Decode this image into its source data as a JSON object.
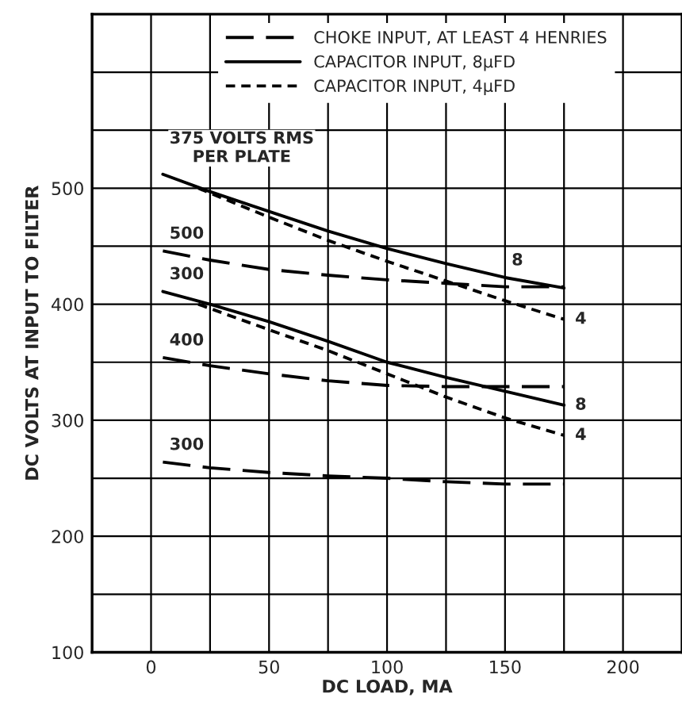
{
  "chart_data": {
    "type": "line",
    "xlabel": "DC LOAD, MA",
    "ylabel": "DC VOLTS AT INPUT TO FILTER",
    "xlim": [
      -25,
      225
    ],
    "ylim": [
      100,
      650
    ],
    "xticks": [
      {
        "value": -25,
        "label": null
      },
      0,
      {
        "value": 25,
        "label": null
      },
      50,
      {
        "value": 75,
        "label": null
      },
      100,
      {
        "value": 125,
        "label": null
      },
      150,
      {
        "value": 175,
        "label": null
      },
      200
    ],
    "yticks": [
      100,
      {
        "value": 150,
        "label": null
      },
      200,
      {
        "value": 250,
        "label": null
      },
      300,
      {
        "value": 350,
        "label": null
      },
      400,
      {
        "value": 450,
        "label": null
      },
      500,
      {
        "value": 550,
        "label": null
      },
      {
        "value": 600,
        "label": null
      }
    ],
    "grid": true,
    "legend": "top",
    "marker": "none",
    "series": [
      {
        "name": "CHOKE INPUT, AT LEAST 4 HENRIES",
        "color": "#000000",
        "line_style": "dashed",
        "x": [
          5,
          25,
          50,
          75,
          100,
          125,
          150,
          175
        ],
        "values": [
          446,
          438,
          430,
          425,
          421,
          418,
          415,
          415
        ]
      },
      {
        "name": "CAPACITOR INPUT, 8µFD",
        "color": "#000000",
        "line_style": "solid",
        "x": [
          5,
          25,
          50,
          75,
          100,
          125,
          150,
          175
        ],
        "values": [
          512,
          497,
          480,
          463,
          448,
          435,
          423,
          414
        ]
      },
      {
        "name": "CAPACITOR INPUT, 4µFD",
        "color": "#000000",
        "line_style": "dotted",
        "x": [
          20,
          50,
          75,
          100,
          125,
          150,
          175
        ],
        "values": [
          500,
          475,
          455,
          437,
          420,
          403,
          387
        ]
      },
      {
        "color": "#000000",
        "line_style": "solid",
        "x": [
          5,
          25,
          50,
          75,
          100,
          125,
          150,
          175
        ],
        "values": [
          411,
          400,
          385,
          368,
          350,
          337,
          325,
          313
        ]
      },
      {
        "color": "#000000",
        "line_style": "dotted",
        "x": [
          20,
          50,
          75,
          100,
          125,
          150,
          175
        ],
        "values": [
          400,
          378,
          360,
          340,
          320,
          302,
          287
        ]
      },
      {
        "color": "#000000",
        "line_style": "dashed",
        "x": [
          5,
          25,
          50,
          75,
          100,
          125,
          150,
          175
        ],
        "values": [
          354,
          347,
          340,
          334,
          330,
          329,
          329,
          329
        ]
      },
      {
        "color": "#000000",
        "line_style": "dashed",
        "x": [
          5,
          25,
          50,
          75,
          100,
          125,
          150,
          175
        ],
        "values": [
          264,
          259,
          255,
          252,
          250,
          247,
          245,
          245
        ]
      }
    ],
    "annotations": [
      {
        "text": "375 VOLTS RMS\nPER PLATE",
        "x": 5,
        "y": 512
      },
      {
        "text": "500",
        "x": 5,
        "y": 446
      },
      {
        "text": "300",
        "x": 5,
        "y": 411
      },
      {
        "text": "400",
        "x": 5,
        "y": 354
      },
      {
        "text": "300",
        "x": 5,
        "y": 264
      },
      {
        "text": "8",
        "x": 150,
        "y": 423
      },
      {
        "text": "4",
        "x": 175,
        "y": 387
      },
      {
        "text": "8",
        "x": 175,
        "y": 313
      },
      {
        "text": "4",
        "x": 175,
        "y": 287
      }
    ]
  }
}
